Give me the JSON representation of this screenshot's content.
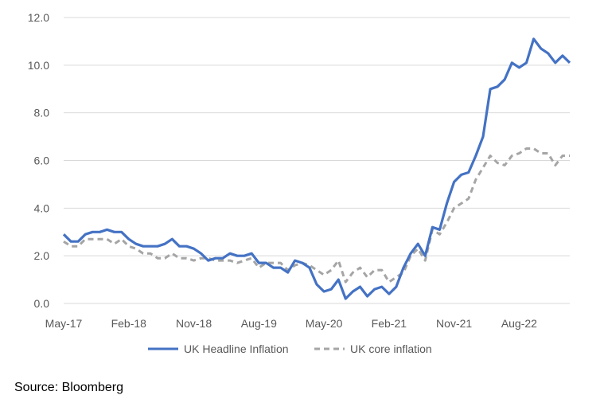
{
  "chart_data": {
    "type": "line",
    "title": "",
    "xlabel": "",
    "ylabel": "",
    "ylim": [
      0,
      12
    ],
    "y_ticks": [
      "0.0",
      "2.0",
      "4.0",
      "6.0",
      "8.0",
      "10.0",
      "12.0"
    ],
    "x_tick_labels": [
      "May-17",
      "Feb-18",
      "Nov-18",
      "Aug-19",
      "May-20",
      "Feb-21",
      "Nov-21",
      "Aug-22"
    ],
    "grid": "horizontal",
    "legend_position": "bottom",
    "x": [
      "2017-05",
      "2017-06",
      "2017-07",
      "2017-08",
      "2017-09",
      "2017-10",
      "2017-11",
      "2017-12",
      "2018-01",
      "2018-02",
      "2018-03",
      "2018-04",
      "2018-05",
      "2018-06",
      "2018-07",
      "2018-08",
      "2018-09",
      "2018-10",
      "2018-11",
      "2018-12",
      "2019-01",
      "2019-02",
      "2019-03",
      "2019-04",
      "2019-05",
      "2019-06",
      "2019-07",
      "2019-08",
      "2019-09",
      "2019-10",
      "2019-11",
      "2019-12",
      "2020-01",
      "2020-02",
      "2020-03",
      "2020-04",
      "2020-05",
      "2020-06",
      "2020-07",
      "2020-08",
      "2020-09",
      "2020-10",
      "2020-11",
      "2020-12",
      "2021-01",
      "2021-02",
      "2021-03",
      "2021-04",
      "2021-05",
      "2021-06",
      "2021-07",
      "2021-08",
      "2021-09",
      "2021-10",
      "2021-11",
      "2021-12",
      "2022-01",
      "2022-02",
      "2022-03",
      "2022-04",
      "2022-05",
      "2022-06",
      "2022-07",
      "2022-08",
      "2022-09",
      "2022-10",
      "2022-11",
      "2022-12",
      "2023-01",
      "2023-02",
      "2023-03"
    ],
    "series": [
      {
        "name": "UK Headline Inflation",
        "color": "#4472C4",
        "style": "solid",
        "values": [
          2.9,
          2.6,
          2.6,
          2.9,
          3.0,
          3.0,
          3.1,
          3.0,
          3.0,
          2.7,
          2.5,
          2.4,
          2.4,
          2.4,
          2.5,
          2.7,
          2.4,
          2.4,
          2.3,
          2.1,
          1.8,
          1.9,
          1.9,
          2.1,
          2.0,
          2.0,
          2.1,
          1.7,
          1.7,
          1.5,
          1.5,
          1.3,
          1.8,
          1.7,
          1.5,
          0.8,
          0.5,
          0.6,
          1.0,
          0.2,
          0.5,
          0.7,
          0.3,
          0.6,
          0.7,
          0.4,
          0.7,
          1.5,
          2.1,
          2.5,
          2.0,
          3.2,
          3.1,
          4.2,
          5.1,
          5.4,
          5.5,
          6.2,
          7.0,
          9.0,
          9.1,
          9.4,
          10.1,
          9.9,
          10.1,
          11.1,
          10.7,
          10.5,
          10.1,
          10.4,
          10.1
        ]
      },
      {
        "name": "UK core inflation",
        "color": "#A5A5A5",
        "style": "dashed",
        "values": [
          2.6,
          2.4,
          2.4,
          2.7,
          2.7,
          2.7,
          2.7,
          2.5,
          2.7,
          2.4,
          2.3,
          2.1,
          2.1,
          1.9,
          1.9,
          2.1,
          1.9,
          1.9,
          1.8,
          1.9,
          1.9,
          1.8,
          1.8,
          1.8,
          1.7,
          1.8,
          1.9,
          1.5,
          1.7,
          1.7,
          1.7,
          1.4,
          1.6,
          1.7,
          1.6,
          1.4,
          1.2,
          1.4,
          1.8,
          0.9,
          1.3,
          1.5,
          1.1,
          1.4,
          1.4,
          0.9,
          1.1,
          1.3,
          2.0,
          2.3,
          1.8,
          3.1,
          2.9,
          3.4,
          4.0,
          4.2,
          4.4,
          5.2,
          5.7,
          6.2,
          5.9,
          5.8,
          6.2,
          6.3,
          6.5,
          6.5,
          6.3,
          6.3,
          5.8,
          6.2,
          6.2
        ]
      }
    ]
  },
  "source": "Source: Bloomberg"
}
